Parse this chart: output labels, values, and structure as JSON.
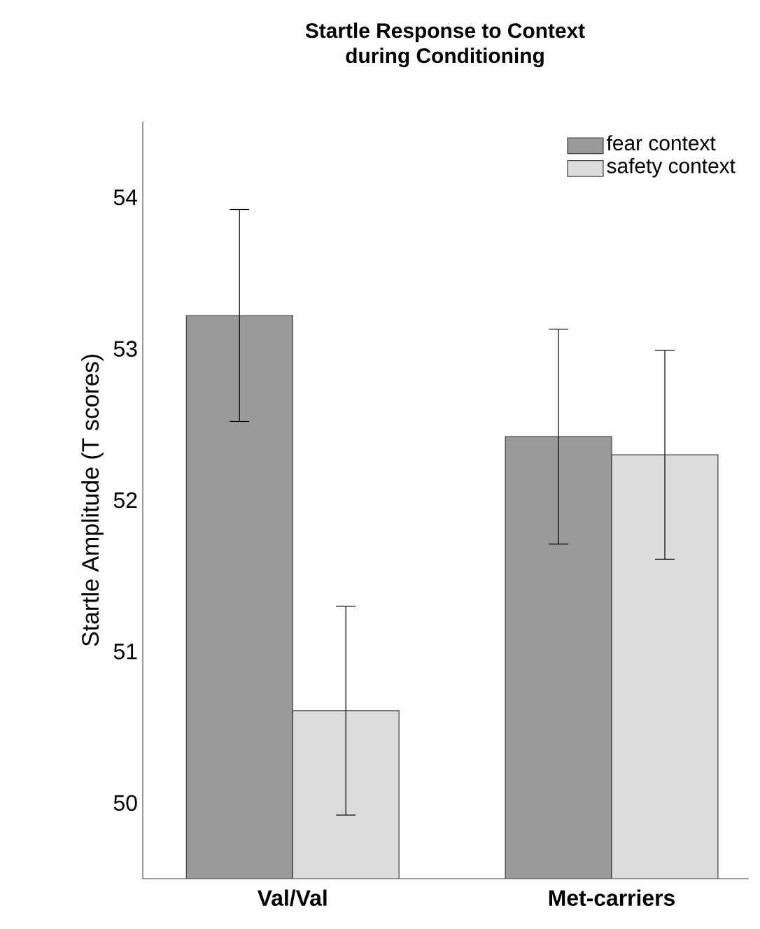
{
  "chart_data": {
    "type": "bar",
    "title": "Startle Response to Context\nduring Conditioning",
    "ylabel": "Startle Amplitude (T scores)",
    "categories": [
      "Val/Val",
      "Met-carriers"
    ],
    "series": [
      {
        "name": "fear context",
        "color": "#999999",
        "values": [
          53.22,
          52.42
        ],
        "errors": [
          0.7,
          0.71
        ]
      },
      {
        "name": "safety context",
        "color": "#dcdcdc",
        "values": [
          50.61,
          52.3
        ],
        "errors": [
          0.69,
          0.69
        ]
      }
    ],
    "ylim": [
      49.5,
      54.5
    ],
    "yticks": [
      50,
      51,
      52,
      53,
      54
    ],
    "legend": "top right",
    "grid": false
  }
}
